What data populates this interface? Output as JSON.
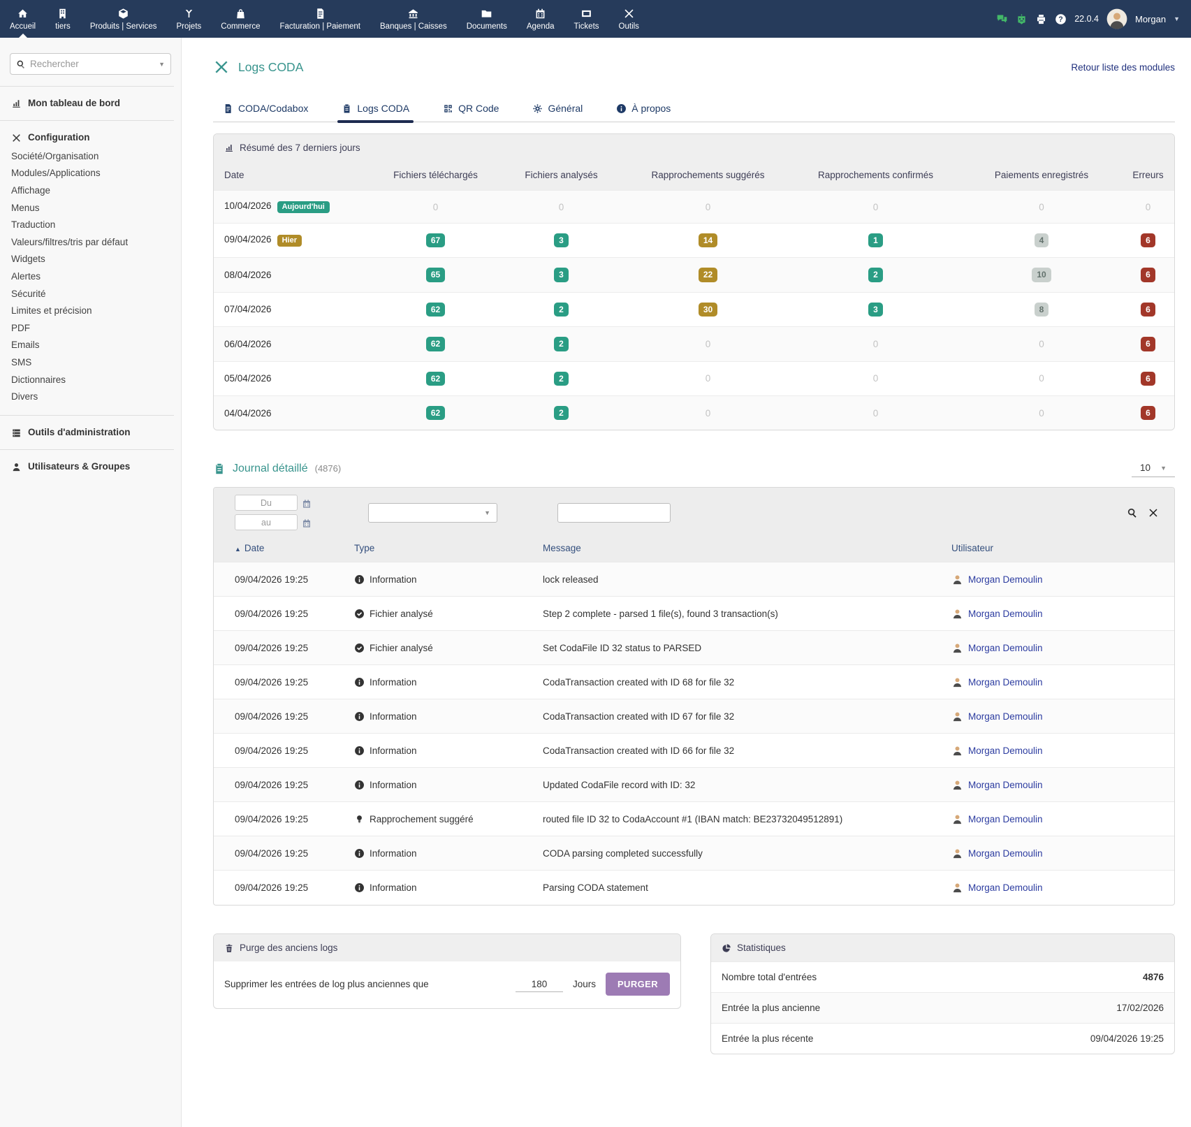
{
  "topnav": {
    "items": [
      {
        "label": "Accueil",
        "icon": "home",
        "active": true
      },
      {
        "label": "tiers",
        "icon": "building"
      },
      {
        "label": "Produits | Services",
        "icon": "cube"
      },
      {
        "label": "Projets",
        "icon": "branch"
      },
      {
        "label": "Commerce",
        "icon": "bag"
      },
      {
        "label": "Facturation | Paiement",
        "icon": "invoice"
      },
      {
        "label": "Banques | Caisses",
        "icon": "bank"
      },
      {
        "label": "Documents",
        "icon": "folder"
      },
      {
        "label": "Agenda",
        "icon": "calendar"
      },
      {
        "label": "Tickets",
        "icon": "ticket"
      },
      {
        "label": "Outils",
        "icon": "tools"
      }
    ],
    "version": "22.0.4",
    "user": "Morgan"
  },
  "sidebar": {
    "search_placeholder": "Rechercher",
    "dashboard": "Mon tableau de bord",
    "config_title": "Configuration",
    "config_items": [
      "Société/Organisation",
      "Modules/Applications",
      "Affichage",
      "Menus",
      "Traduction",
      "Valeurs/filtres/tris par défaut",
      "Widgets",
      "Alertes",
      "Sécurité",
      "Limites et précision",
      "PDF",
      "Emails",
      "SMS",
      "Dictionnaires",
      "Divers"
    ],
    "admin_tools": "Outils d'administration",
    "users_groups": "Utilisateurs & Groupes"
  },
  "header": {
    "title": "Logs CODA",
    "back_link": "Retour liste des modules"
  },
  "tabs": [
    {
      "label": "CODA/Codabox",
      "icon": "invoice",
      "active": false
    },
    {
      "label": "Logs CODA",
      "icon": "clipboard",
      "active": true
    },
    {
      "label": "QR Code",
      "icon": "qrcode",
      "active": false
    },
    {
      "label": "Général",
      "icon": "gears",
      "active": false
    },
    {
      "label": "À propos",
      "icon": "info",
      "active": false
    }
  ],
  "summary": {
    "title": "Résumé des 7 derniers jours",
    "columns": [
      "Date",
      "Fichiers téléchargés",
      "Fichiers analysés",
      "Rapprochements suggérés",
      "Rapprochements confirmés",
      "Paiements enregistrés",
      "Erreurs"
    ],
    "rows": [
      {
        "date": "10/04/2026",
        "tag": "Aujourd'hui",
        "tag_variant": "green",
        "cells": [
          {
            "t": "0",
            "v": "zero"
          },
          {
            "t": "0",
            "v": "zero"
          },
          {
            "t": "0",
            "v": "zero"
          },
          {
            "t": "0",
            "v": "zero"
          },
          {
            "t": "0",
            "v": "zero"
          },
          {
            "t": "0",
            "v": "zero"
          }
        ]
      },
      {
        "date": "09/04/2026",
        "tag": "Hier",
        "tag_variant": "gold",
        "cells": [
          {
            "t": "67",
            "v": "green"
          },
          {
            "t": "3",
            "v": "green"
          },
          {
            "t": "14",
            "v": "gold"
          },
          {
            "t": "1",
            "v": "green"
          },
          {
            "t": "4",
            "v": "gray"
          },
          {
            "t": "6",
            "v": "red"
          }
        ]
      },
      {
        "date": "08/04/2026",
        "tag": "",
        "tag_variant": "",
        "cells": [
          {
            "t": "65",
            "v": "green"
          },
          {
            "t": "3",
            "v": "green"
          },
          {
            "t": "22",
            "v": "gold"
          },
          {
            "t": "2",
            "v": "green"
          },
          {
            "t": "10",
            "v": "gray"
          },
          {
            "t": "6",
            "v": "red"
          }
        ]
      },
      {
        "date": "07/04/2026",
        "tag": "",
        "tag_variant": "",
        "cells": [
          {
            "t": "62",
            "v": "green"
          },
          {
            "t": "2",
            "v": "green"
          },
          {
            "t": "30",
            "v": "gold"
          },
          {
            "t": "3",
            "v": "green"
          },
          {
            "t": "8",
            "v": "gray"
          },
          {
            "t": "6",
            "v": "red"
          }
        ]
      },
      {
        "date": "06/04/2026",
        "tag": "",
        "tag_variant": "",
        "cells": [
          {
            "t": "62",
            "v": "green"
          },
          {
            "t": "2",
            "v": "green"
          },
          {
            "t": "0",
            "v": "zero"
          },
          {
            "t": "0",
            "v": "zero"
          },
          {
            "t": "0",
            "v": "zero"
          },
          {
            "t": "6",
            "v": "red"
          }
        ]
      },
      {
        "date": "05/04/2026",
        "tag": "",
        "tag_variant": "",
        "cells": [
          {
            "t": "62",
            "v": "green"
          },
          {
            "t": "2",
            "v": "green"
          },
          {
            "t": "0",
            "v": "zero"
          },
          {
            "t": "0",
            "v": "zero"
          },
          {
            "t": "0",
            "v": "zero"
          },
          {
            "t": "6",
            "v": "red"
          }
        ]
      },
      {
        "date": "04/04/2026",
        "tag": "",
        "tag_variant": "",
        "cells": [
          {
            "t": "62",
            "v": "green"
          },
          {
            "t": "2",
            "v": "green"
          },
          {
            "t": "0",
            "v": "zero"
          },
          {
            "t": "0",
            "v": "zero"
          },
          {
            "t": "0",
            "v": "zero"
          },
          {
            "t": "6",
            "v": "red"
          }
        ]
      }
    ]
  },
  "journal": {
    "title": "Journal détaillé",
    "count": "(4876)",
    "page_size": "10",
    "filters": {
      "from_placeholder": "Du",
      "to_placeholder": "au"
    },
    "columns": [
      "Date",
      "Type",
      "Message",
      "Utilisateur"
    ],
    "rows": [
      {
        "date": "09/04/2026 19:25",
        "type": "Information",
        "type_icon": "info",
        "message": "lock released",
        "user": "Morgan Demoulin"
      },
      {
        "date": "09/04/2026 19:25",
        "type": "Fichier analysé",
        "type_icon": "check",
        "message": "Step 2 complete - parsed 1 file(s), found 3 transaction(s)",
        "user": "Morgan Demoulin"
      },
      {
        "date": "09/04/2026 19:25",
        "type": "Fichier analysé",
        "type_icon": "check",
        "message": "Set CodaFile ID 32 status to PARSED",
        "user": "Morgan Demoulin"
      },
      {
        "date": "09/04/2026 19:25",
        "type": "Information",
        "type_icon": "info",
        "message": "CodaTransaction created with ID 68 for file 32",
        "user": "Morgan Demoulin"
      },
      {
        "date": "09/04/2026 19:25",
        "type": "Information",
        "type_icon": "info",
        "message": "CodaTransaction created with ID 67 for file 32",
        "user": "Morgan Demoulin"
      },
      {
        "date": "09/04/2026 19:25",
        "type": "Information",
        "type_icon": "info",
        "message": "CodaTransaction created with ID 66 for file 32",
        "user": "Morgan Demoulin"
      },
      {
        "date": "09/04/2026 19:25",
        "type": "Information",
        "type_icon": "info",
        "message": "Updated CodaFile record with ID: 32",
        "user": "Morgan Demoulin"
      },
      {
        "date": "09/04/2026 19:25",
        "type": "Rapprochement suggéré",
        "type_icon": "bulb",
        "message": "routed file ID 32 to CodaAccount #1 (IBAN match: BE23732049512891)",
        "user": "Morgan Demoulin"
      },
      {
        "date": "09/04/2026 19:25",
        "type": "Information",
        "type_icon": "info",
        "message": "CODA parsing completed successfully",
        "user": "Morgan Demoulin"
      },
      {
        "date": "09/04/2026 19:25",
        "type": "Information",
        "type_icon": "info",
        "message": "Parsing CODA statement",
        "user": "Morgan Demoulin"
      }
    ]
  },
  "purge": {
    "title": "Purge des anciens logs",
    "label": "Supprimer les entrées de log plus anciennes que",
    "value": "180",
    "unit": "Jours",
    "button": "PURGER"
  },
  "stats": {
    "title": "Statistiques",
    "rows": [
      {
        "label": "Nombre total d'entrées",
        "value": "4876",
        "bold": true
      },
      {
        "label": "Entrée la plus ancienne",
        "value": "17/02/2026",
        "bold": false
      },
      {
        "label": "Entrée la plus récente",
        "value": "09/04/2026 19:25",
        "bold": false
      }
    ]
  },
  "colors": {
    "topnav": "#263b5b",
    "accent_teal": "#38948d",
    "tab_navy": "#1e3a66",
    "badge_green": "#2a9d84",
    "badge_gold": "#b08c28",
    "badge_red": "#a23729",
    "badge_gray": "#c9d0cd",
    "button_purple": "#9d7bb4",
    "link_blue": "#2c3ca0"
  }
}
